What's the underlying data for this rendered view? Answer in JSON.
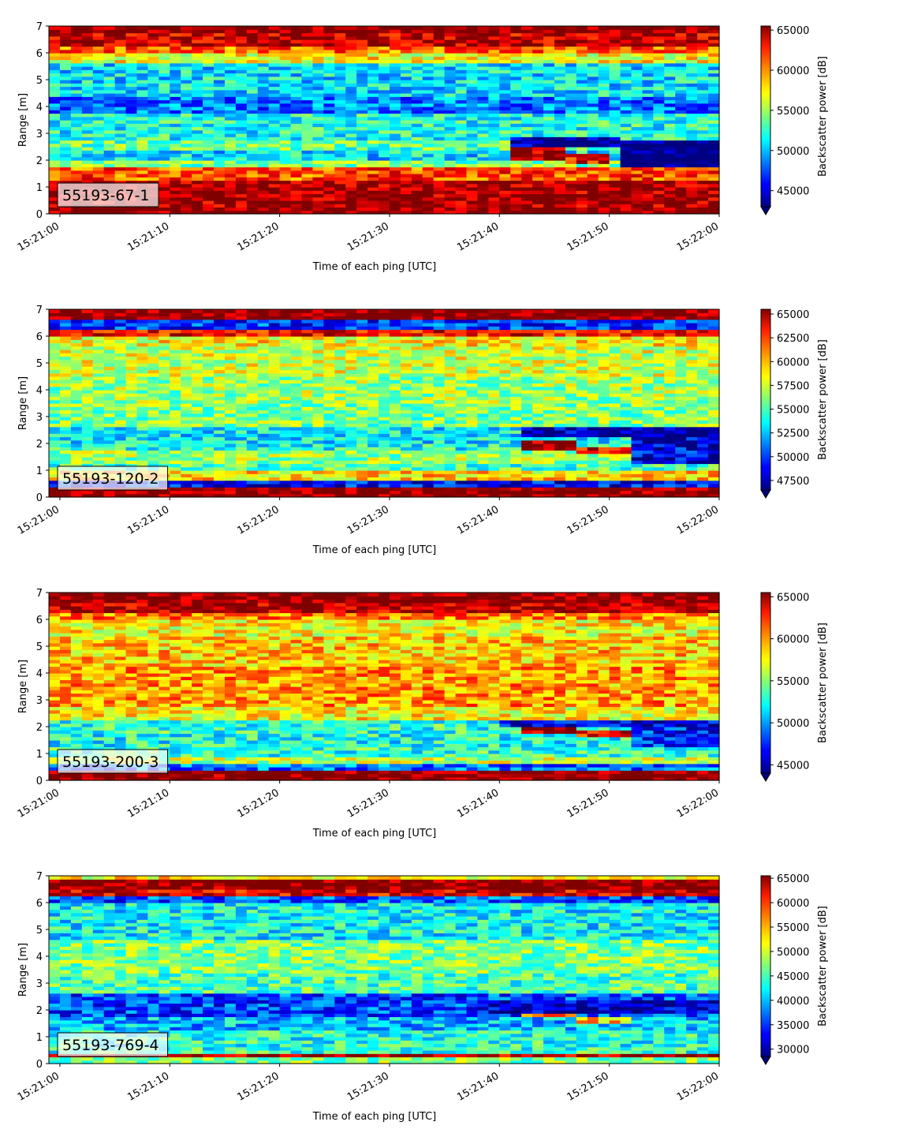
{
  "figure": {
    "xlabel": "Time of each ping [UTC]",
    "ylabel": "Range [m]",
    "colorbar_label": "Backscatter power [dB]"
  },
  "chart_data": [
    {
      "type": "heatmap",
      "id": "panel-1",
      "tag": "55193-67-1",
      "xlabel": "Time of each ping [UTC]",
      "ylabel": "Range [m]",
      "x_ticks": [
        "15:21:00",
        "15:21:10",
        "15:21:20",
        "15:21:30",
        "15:21:40",
        "15:21:50",
        "15:22:00"
      ],
      "xlim": [
        "15:20:59",
        "15:22:00"
      ],
      "y_ticks": [
        0,
        1,
        2,
        3,
        4,
        5,
        6,
        7
      ],
      "ylim": [
        0,
        7
      ],
      "colorbar_label": "Backscatter power [dB]",
      "colorbar_ticks": [
        45000,
        50000,
        55000,
        60000,
        65000
      ],
      "vmin": 43000,
      "vmax": 65500,
      "colormap": "jet",
      "bands": [
        {
          "range": [
            0.0,
            0.25
          ],
          "value": 65500
        },
        {
          "range": [
            0.25,
            1.3
          ],
          "value": 64800
        },
        {
          "range": [
            1.3,
            1.75
          ],
          "value": 61000
        },
        {
          "range": [
            1.75,
            2.0
          ],
          "value": 54000
        },
        {
          "range": [
            2.0,
            2.4
          ],
          "value": 51000
        },
        {
          "range": [
            2.4,
            2.8
          ],
          "value": 53500
        },
        {
          "range": [
            2.8,
            3.7
          ],
          "value": 52000
        },
        {
          "range": [
            3.7,
            4.4
          ],
          "value": 48500
        },
        {
          "range": [
            4.4,
            5.6
          ],
          "value": 51000
        },
        {
          "range": [
            5.6,
            6.0
          ],
          "value": 57000
        },
        {
          "range": [
            6.0,
            6.3
          ],
          "value": 60500
        },
        {
          "range": [
            6.3,
            6.7
          ],
          "value": 64000
        },
        {
          "range": [
            6.7,
            7.0
          ],
          "value": 65500
        }
      ],
      "features": [
        {
          "t": [
            "15:21:41",
            "15:21:46"
          ],
          "range": [
            2.0,
            2.5
          ],
          "value": 65000
        },
        {
          "t": [
            "15:21:46",
            "15:21:50"
          ],
          "range": [
            1.9,
            2.3
          ],
          "value": 63000
        },
        {
          "t": [
            "15:21:41",
            "15:21:51"
          ],
          "range": [
            2.5,
            2.85
          ],
          "value": 43500
        },
        {
          "t": [
            "15:21:51",
            "15:22:00"
          ],
          "range": [
            1.7,
            2.8
          ],
          "value": 42000
        }
      ]
    },
    {
      "type": "heatmap",
      "id": "panel-2",
      "tag": "55193-120-2",
      "xlabel": "Time of each ping [UTC]",
      "ylabel": "Range [m]",
      "x_ticks": [
        "15:21:00",
        "15:21:10",
        "15:21:20",
        "15:21:30",
        "15:21:40",
        "15:21:50",
        "15:22:00"
      ],
      "xlim": [
        "15:20:59",
        "15:22:00"
      ],
      "y_ticks": [
        0,
        1,
        2,
        3,
        4,
        5,
        6,
        7
      ],
      "ylim": [
        0,
        7
      ],
      "colorbar_label": "Backscatter power [dB]",
      "colorbar_ticks": [
        47500,
        50000,
        52500,
        55000,
        57500,
        60000,
        62500,
        65000
      ],
      "vmin": 46500,
      "vmax": 65500,
      "colormap": "jet",
      "bands": [
        {
          "range": [
            0.0,
            0.35
          ],
          "value": 65500
        },
        {
          "range": [
            0.35,
            0.6
          ],
          "value": 49000
        },
        {
          "range": [
            0.6,
            0.95
          ],
          "value": 59000
        },
        {
          "range": [
            0.95,
            1.3
          ],
          "value": 55000
        },
        {
          "range": [
            1.3,
            1.7
          ],
          "value": 56500
        },
        {
          "range": [
            1.7,
            2.0
          ],
          "value": 54000
        },
        {
          "range": [
            2.0,
            2.6
          ],
          "value": 53500
        },
        {
          "range": [
            2.6,
            3.5
          ],
          "value": 56000
        },
        {
          "range": [
            3.5,
            4.5
          ],
          "value": 56500
        },
        {
          "range": [
            4.5,
            5.6
          ],
          "value": 57500
        },
        {
          "range": [
            5.6,
            6.0
          ],
          "value": 58500
        },
        {
          "range": [
            6.0,
            6.3
          ],
          "value": 63000
        },
        {
          "range": [
            6.3,
            6.6
          ],
          "value": 50000
        },
        {
          "range": [
            6.6,
            7.0
          ],
          "value": 65500
        }
      ],
      "features": [
        {
          "t": [
            "15:21:42",
            "15:21:47"
          ],
          "range": [
            1.8,
            2.1
          ],
          "value": 65000
        },
        {
          "t": [
            "15:21:47",
            "15:21:53"
          ],
          "range": [
            1.6,
            1.9
          ],
          "value": 63500
        },
        {
          "t": [
            "15:21:42",
            "15:22:00"
          ],
          "range": [
            2.2,
            2.6
          ],
          "value": 47500
        },
        {
          "t": [
            "15:21:52",
            "15:22:00"
          ],
          "range": [
            1.3,
            2.2
          ],
          "value": 48500
        }
      ]
    },
    {
      "type": "heatmap",
      "id": "panel-3",
      "tag": "55193-200-3",
      "xlabel": "Time of each ping [UTC]",
      "ylabel": "Range [m]",
      "x_ticks": [
        "15:21:00",
        "15:21:10",
        "15:21:20",
        "15:21:30",
        "15:21:40",
        "15:21:50",
        "15:22:00"
      ],
      "xlim": [
        "15:20:59",
        "15:22:00"
      ],
      "y_ticks": [
        0,
        1,
        2,
        3,
        4,
        5,
        6,
        7
      ],
      "ylim": [
        0,
        7
      ],
      "colorbar_label": "Backscatter power [dB]",
      "colorbar_ticks": [
        45000,
        50000,
        55000,
        60000,
        65000
      ],
      "vmin": 44000,
      "vmax": 65500,
      "colormap": "jet",
      "bands": [
        {
          "range": [
            0.0,
            0.35
          ],
          "value": 65500
        },
        {
          "range": [
            0.35,
            0.6
          ],
          "value": 49000
        },
        {
          "range": [
            0.6,
            0.9
          ],
          "value": 56000
        },
        {
          "range": [
            0.9,
            1.3
          ],
          "value": 53000
        },
        {
          "range": [
            1.3,
            1.7
          ],
          "value": 52500
        },
        {
          "range": [
            1.7,
            2.2
          ],
          "value": 53000
        },
        {
          "range": [
            2.2,
            2.8
          ],
          "value": 57500
        },
        {
          "range": [
            2.8,
            4.2
          ],
          "value": 59500
        },
        {
          "range": [
            4.2,
            5.4
          ],
          "value": 58500
        },
        {
          "range": [
            5.4,
            6.0
          ],
          "value": 57500
        },
        {
          "range": [
            6.0,
            6.3
          ],
          "value": 60000
        },
        {
          "range": [
            6.3,
            6.6
          ],
          "value": 64500
        },
        {
          "range": [
            6.6,
            7.0
          ],
          "value": 65500
        }
      ],
      "features": [
        {
          "t": [
            "15:21:42",
            "15:21:47"
          ],
          "range": [
            1.8,
            2.1
          ],
          "value": 65000
        },
        {
          "t": [
            "15:21:47",
            "15:21:52"
          ],
          "range": [
            1.6,
            1.9
          ],
          "value": 63000
        },
        {
          "t": [
            "15:21:40",
            "15:22:00"
          ],
          "range": [
            2.0,
            2.3
          ],
          "value": 46000
        },
        {
          "t": [
            "15:21:52",
            "15:22:00"
          ],
          "range": [
            1.3,
            2.0
          ],
          "value": 47500
        }
      ]
    },
    {
      "type": "heatmap",
      "id": "panel-4",
      "tag": "55193-769-4",
      "xlabel": "Time of each ping [UTC]",
      "ylabel": "Range [m]",
      "x_ticks": [
        "15:21:00",
        "15:21:10",
        "15:21:20",
        "15:21:30",
        "15:21:40",
        "15:21:50",
        "15:22:00"
      ],
      "xlim": [
        "15:20:59",
        "15:22:00"
      ],
      "y_ticks": [
        0,
        1,
        2,
        3,
        4,
        5,
        6,
        7
      ],
      "ylim": [
        0,
        7
      ],
      "colorbar_label": "Backscatter power [dB]",
      "colorbar_ticks": [
        30000,
        35000,
        40000,
        45000,
        50000,
        55000,
        60000,
        65000
      ],
      "vmin": 28500,
      "vmax": 65500,
      "colormap": "jet",
      "bands": [
        {
          "range": [
            0.0,
            0.25
          ],
          "value": 47000
        },
        {
          "range": [
            0.25,
            0.35
          ],
          "value": 64000
        },
        {
          "range": [
            0.35,
            0.6
          ],
          "value": 44000
        },
        {
          "range": [
            0.6,
            1.3
          ],
          "value": 43500
        },
        {
          "range": [
            1.3,
            1.8
          ],
          "value": 40000
        },
        {
          "range": [
            1.8,
            2.6
          ],
          "value": 35500
        },
        {
          "range": [
            2.6,
            3.4
          ],
          "value": 45000
        },
        {
          "range": [
            3.4,
            4.6
          ],
          "value": 47000
        },
        {
          "range": [
            4.6,
            6.0
          ],
          "value": 42500
        },
        {
          "range": [
            6.0,
            6.3
          ],
          "value": 36000
        },
        {
          "range": [
            6.3,
            6.55
          ],
          "value": 62000
        },
        {
          "range": [
            6.55,
            6.85
          ],
          "value": 65500
        },
        {
          "range": [
            6.85,
            7.0
          ],
          "value": 52000
        }
      ],
      "features": [
        {
          "t": [
            "15:21:42",
            "15:21:47"
          ],
          "range": [
            1.8,
            2.0
          ],
          "value": 56000
        },
        {
          "t": [
            "15:21:47",
            "15:21:52"
          ],
          "range": [
            1.55,
            1.8
          ],
          "value": 54000
        },
        {
          "t": [
            "15:21:38",
            "15:22:00"
          ],
          "range": [
            1.9,
            2.4
          ],
          "value": 31500
        }
      ]
    }
  ]
}
